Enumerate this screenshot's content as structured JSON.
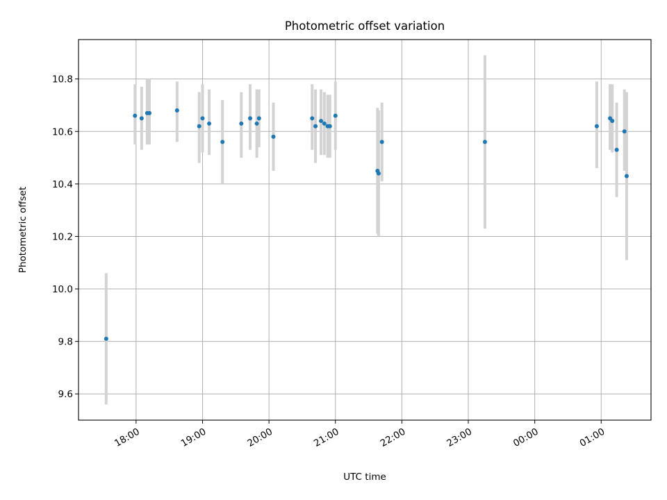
{
  "chart_data": {
    "type": "scatter",
    "title": "Photometric offset variation",
    "xlabel": "UTC time",
    "ylabel": "Photometric offset",
    "ylim": [
      9.5,
      10.95
    ],
    "xlim": [
      "17:08",
      "01:45"
    ],
    "y_ticks": [
      9.6,
      9.8,
      10.0,
      10.2,
      10.4,
      10.6,
      10.8
    ],
    "x_ticks": [
      "18:00",
      "19:00",
      "20:00",
      "21:00",
      "22:00",
      "23:00",
      "00:00",
      "01:00"
    ],
    "grid": true,
    "point_color": "#1f77b4",
    "errorbar_color": "#d3d3d3",
    "series": [
      {
        "points": [
          {
            "x": "17:33",
            "y": 9.81,
            "ylo": 9.56,
            "yhi": 10.06
          },
          {
            "x": "17:59",
            "y": 10.66,
            "ylo": 10.55,
            "yhi": 10.78
          },
          {
            "x": "18:05",
            "y": 10.65,
            "ylo": 10.53,
            "yhi": 10.77
          },
          {
            "x": "18:10",
            "y": 10.67,
            "ylo": 10.55,
            "yhi": 10.8
          },
          {
            "x": "18:12",
            "y": 10.67,
            "ylo": 10.55,
            "yhi": 10.8
          },
          {
            "x": "18:37",
            "y": 10.68,
            "ylo": 10.56,
            "yhi": 10.79
          },
          {
            "x": "18:57",
            "y": 10.62,
            "ylo": 10.48,
            "yhi": 10.75
          },
          {
            "x": "19:00",
            "y": 10.65,
            "ylo": 10.52,
            "yhi": 10.78
          },
          {
            "x": "19:06",
            "y": 10.63,
            "ylo": 10.51,
            "yhi": 10.76
          },
          {
            "x": "19:18",
            "y": 10.56,
            "ylo": 10.4,
            "yhi": 10.72
          },
          {
            "x": "19:35",
            "y": 10.63,
            "ylo": 10.5,
            "yhi": 10.75
          },
          {
            "x": "19:43",
            "y": 10.65,
            "ylo": 10.53,
            "yhi": 10.78
          },
          {
            "x": "19:49",
            "y": 10.63,
            "ylo": 10.5,
            "yhi": 10.76
          },
          {
            "x": "19:51",
            "y": 10.65,
            "ylo": 10.54,
            "yhi": 10.76
          },
          {
            "x": "20:04",
            "y": 10.58,
            "ylo": 10.45,
            "yhi": 10.71
          },
          {
            "x": "20:39",
            "y": 10.65,
            "ylo": 10.53,
            "yhi": 10.78
          },
          {
            "x": "20:42",
            "y": 10.62,
            "ylo": 10.48,
            "yhi": 10.76
          },
          {
            "x": "20:47",
            "y": 10.64,
            "ylo": 10.51,
            "yhi": 10.76
          },
          {
            "x": "20:50",
            "y": 10.63,
            "ylo": 10.51,
            "yhi": 10.75
          },
          {
            "x": "20:53",
            "y": 10.62,
            "ylo": 10.5,
            "yhi": 10.74
          },
          {
            "x": "20:55",
            "y": 10.62,
            "ylo": 10.5,
            "yhi": 10.74
          },
          {
            "x": "21:00",
            "y": 10.66,
            "ylo": 10.53,
            "yhi": 10.79
          },
          {
            "x": "21:38",
            "y": 10.45,
            "ylo": 10.21,
            "yhi": 10.69
          },
          {
            "x": "21:39",
            "y": 10.44,
            "ylo": 10.2,
            "yhi": 10.68
          },
          {
            "x": "21:42",
            "y": 10.56,
            "ylo": 10.41,
            "yhi": 10.71
          },
          {
            "x": "23:15",
            "y": 10.56,
            "ylo": 10.23,
            "yhi": 10.89
          },
          {
            "x": "00:56",
            "y": 10.62,
            "ylo": 10.46,
            "yhi": 10.79
          },
          {
            "x": "01:08",
            "y": 10.65,
            "ylo": 10.53,
            "yhi": 10.78
          },
          {
            "x": "01:10",
            "y": 10.64,
            "ylo": 10.52,
            "yhi": 10.78
          },
          {
            "x": "01:14",
            "y": 10.53,
            "ylo": 10.35,
            "yhi": 10.71
          },
          {
            "x": "01:21",
            "y": 10.6,
            "ylo": 10.45,
            "yhi": 10.76
          },
          {
            "x": "01:23",
            "y": 10.43,
            "ylo": 10.11,
            "yhi": 10.75
          }
        ]
      }
    ]
  }
}
